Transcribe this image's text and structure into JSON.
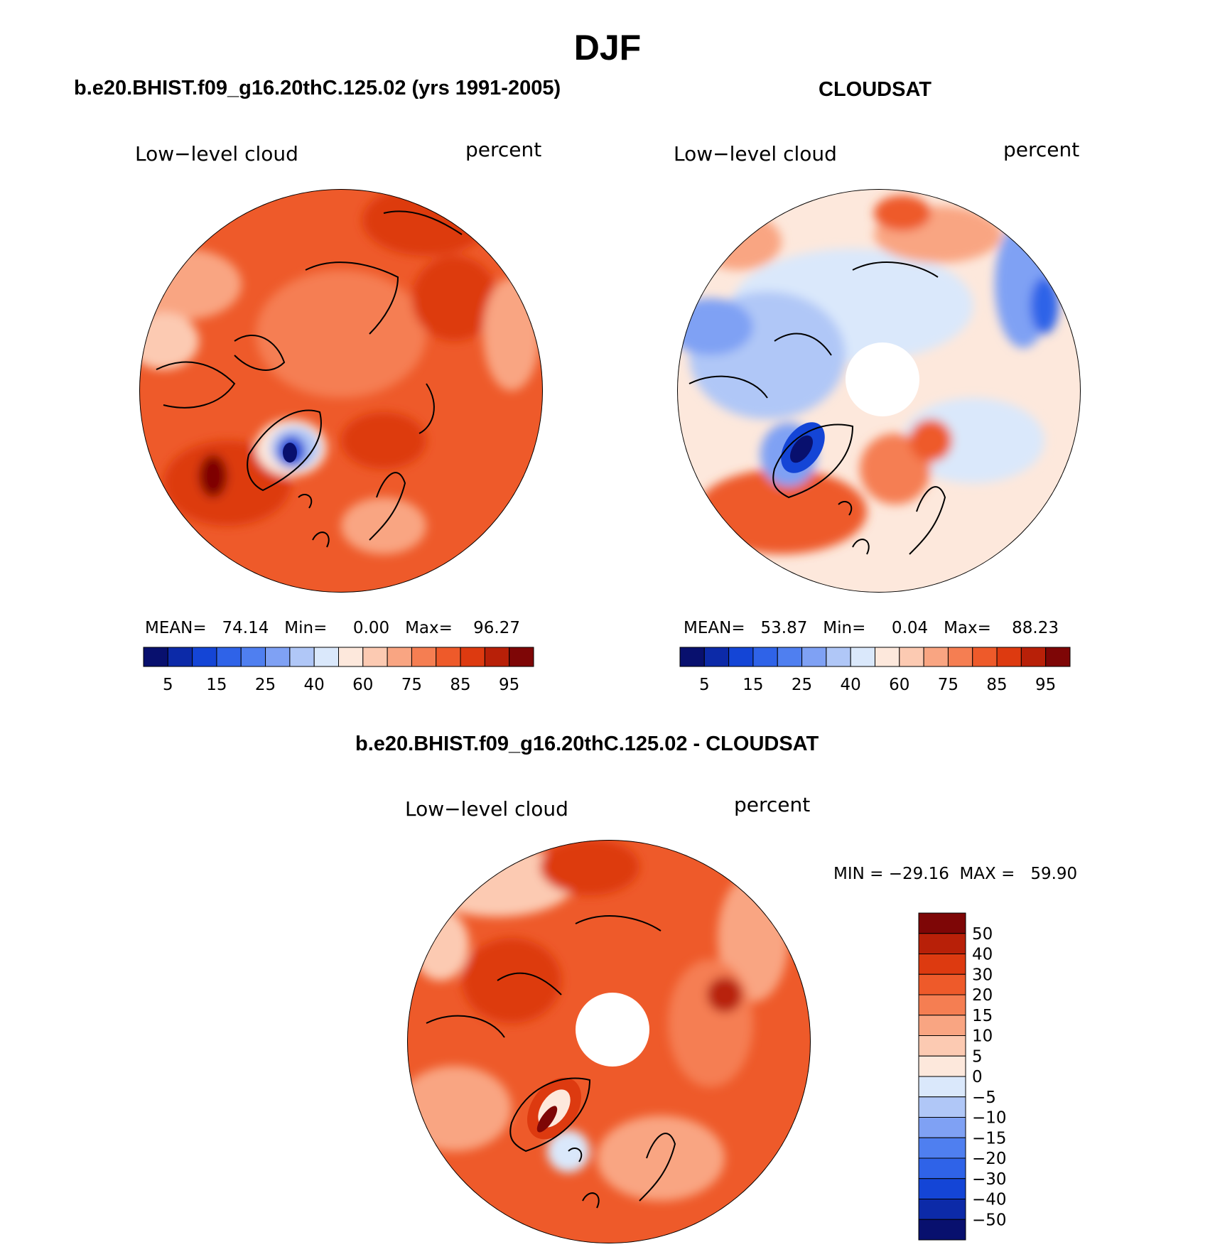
{
  "main_title": "DJF",
  "panels": [
    {
      "title": "b.e20.BHIST.f09_g16.20thC.125.02 (yrs 1991-2005)",
      "left_label": "Low−level cloud",
      "right_label": "percent",
      "stats": "MEAN=   74.14   Min=     0.00   Max=    96.27",
      "colorbar_labels": [
        "5",
        "15",
        "25",
        "40",
        "60",
        "75",
        "85",
        "95"
      ]
    },
    {
      "title": "CLOUDSAT",
      "left_label": "Low−level cloud",
      "right_label": "percent",
      "stats": "MEAN=   53.87   Min=     0.04   Max=    88.23",
      "colorbar_labels": [
        "5",
        "15",
        "25",
        "40",
        "60",
        "75",
        "85",
        "95"
      ]
    },
    {
      "title": "b.e20.BHIST.f09_g16.20thC.125.02 - CLOUDSAT",
      "left_label": "Low−level cloud",
      "right_label": "percent",
      "stats": "MIN = −29.16  MAX =   59.90",
      "colorbar_labels": [
        "50",
        "40",
        "30",
        "20",
        "15",
        "10",
        "5",
        "0",
        "−5",
        "−10",
        "−15",
        "−20",
        "−30",
        "−40",
        "−50"
      ]
    }
  ],
  "colors": {
    "abs_scale": [
      "#08106e",
      "#0c2aa8",
      "#1445d6",
      "#2f63e8",
      "#4f7ff0",
      "#7fa1f4",
      "#b0c7f7",
      "#dae8fb",
      "#fde8dc",
      "#fccab2",
      "#f9a582",
      "#f57e52",
      "#ee5a2a",
      "#dd3a10",
      "#b82008",
      "#7e0606"
    ],
    "diff_scale": [
      "#7e0606",
      "#b82008",
      "#dd3a10",
      "#ee5a2a",
      "#f57e52",
      "#f9a582",
      "#fccab2",
      "#fde8dc",
      "#dae8fb",
      "#b0c7f7",
      "#7fa1f4",
      "#4f7ff0",
      "#2f63e8",
      "#1445d6",
      "#0c2aa8",
      "#08106e"
    ]
  }
}
